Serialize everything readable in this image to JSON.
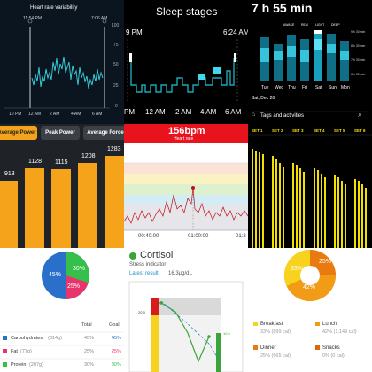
{
  "hrv": {
    "title": "Heart rate variability",
    "start_time": "11:54 PM",
    "end_time": "7:06 AM",
    "y_ticks": [
      "100",
      "75",
      "50",
      "25",
      "0"
    ],
    "x_ticks": [
      "10 PM",
      "12 AM",
      "2 AM",
      "4 AM",
      "6 AM"
    ],
    "colors": {
      "bg": "#0b1520",
      "line": "#3ad6e0"
    }
  },
  "sleep_stages": {
    "title": "Sleep stages",
    "start_time": "9 PM",
    "end_time": "6:24 AM",
    "x_ticks": [
      "PM",
      "12 AM",
      "2 AM",
      "4 AM",
      "6 AM"
    ],
    "colors": {
      "line": "#1aa9b8",
      "rem": "#40d8ea"
    }
  },
  "sleep_summary": {
    "duration": "7 h 55 min",
    "legend": [
      "AWAKE",
      "REM",
      "LIGHT",
      "DEEP"
    ],
    "y_ticks": [
      "9 h 30 min",
      "8 h 30 min",
      "7 h 30 min",
      "6 h 30 min"
    ],
    "days": [
      "Tue",
      "Wed",
      "Thu",
      "Fri",
      "Sat",
      "Sun",
      "Mon"
    ],
    "date_label": "Sat, Dec 26",
    "tags_label": "Tags and activities"
  },
  "power": {
    "tabs": [
      "Average Power",
      "Peak Power",
      "Average Force"
    ],
    "values": [
      "913",
      "1128",
      "1115",
      "1208",
      "1283"
    ],
    "colors": {
      "bar": "#f5a31a",
      "active_tab": "#f5a31a"
    }
  },
  "heart_rate": {
    "bpm": "156bpm",
    "label": "Heart rate",
    "x_ticks": [
      "00:40:00",
      "01:00:00",
      "01:2"
    ],
    "colors": {
      "header": "#e8131c",
      "line": "#c0101a"
    }
  },
  "sets": {
    "labels": [
      "SET 1",
      "SET 2",
      "SET 3",
      "SET 4",
      "SET 5",
      "SET 6"
    ],
    "colors": {
      "bar": "#f2e100"
    }
  },
  "macros": {
    "slices": [
      {
        "label": "Carbohydrates",
        "grams": "(314g)",
        "percent": "45%",
        "goal": "45%",
        "color": "#2a6fc9"
      },
      {
        "label": "Fat",
        "grams": "(77g)",
        "percent": "25%",
        "goal": "25%",
        "color": "#e8346a"
      },
      {
        "label": "Protein",
        "grams": "(207g)",
        "percent": "30%",
        "goal": "30%",
        "color": "#36c04b"
      }
    ],
    "col_total": "Total",
    "col_goal": "Goal"
  },
  "cortisol": {
    "title": "Cortisol",
    "subtitle": "Stress indicator",
    "latest_label": "Latest result",
    "latest_value": "16.3μg/dL",
    "y_label": "20.3",
    "low_label": "10.9",
    "colors": {
      "accent": "#3aa43a",
      "link": "#1a8fbf"
    }
  },
  "meals": {
    "slices": [
      {
        "label": "Breakfast",
        "detail": "33% (899 cal)",
        "percent": "33%",
        "color": "#f7d21e"
      },
      {
        "label": "Lunch",
        "detail": "42% (1,149 cal)",
        "percent": "42%",
        "color": "#f29b16"
      },
      {
        "label": "Dinner",
        "detail": "25% (665 cal)",
        "percent": "25%",
        "color": "#e87a10"
      },
      {
        "label": "Snacks",
        "detail": "0% (0 cal)",
        "percent": "0%",
        "color": "#d86a0a"
      }
    ]
  }
}
